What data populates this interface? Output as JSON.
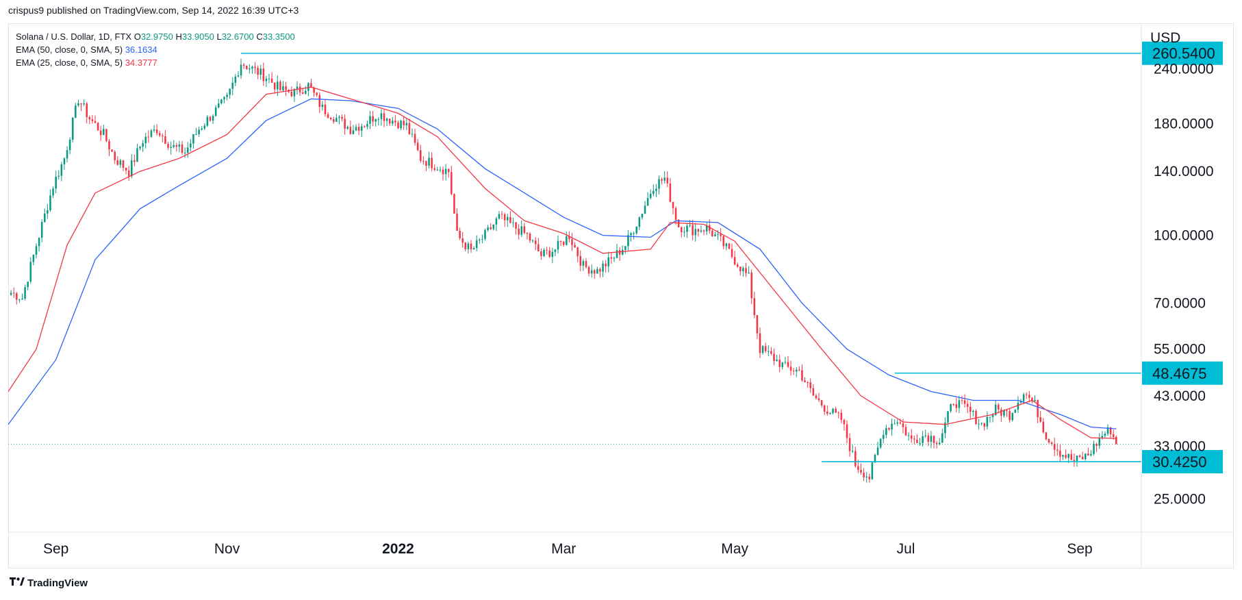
{
  "publisher_line": "crispus9 published on TradingView.com, Sep 14, 2022 16:39 UTC+3",
  "legend": {
    "symbol": "Solana / U.S. Dollar, 1D, FTX",
    "ohlc": [
      {
        "label": "O",
        "value": "32.9750"
      },
      {
        "label": "H",
        "value": "33.9050"
      },
      {
        "label": "L",
        "value": "32.6700"
      },
      {
        "label": "C",
        "value": "33.3500"
      }
    ],
    "ema50": {
      "label": "EMA (50, close, 0, SMA, 5)",
      "value": "36.1634"
    },
    "ema25": {
      "label": "EMA (25, close, 0, SMA, 5)",
      "value": "34.3777"
    }
  },
  "footer_logo": "TradingView",
  "colors": {
    "up": "#089981",
    "down": "#f23645",
    "ema50": "#2962ff",
    "ema25": "#f23645",
    "level_line": "#00bcd4",
    "level_label_bg": "#00bcd4",
    "last_price_dotted": "#26a69a"
  },
  "chart_data": {
    "type": "candlestick",
    "currency_label": "USD",
    "scale": "log",
    "y_ticks": [
      "240.0000",
      "180.0000",
      "140.0000",
      "100.0000",
      "70.0000",
      "55.0000",
      "43.0000",
      "33.0000",
      "25.0000"
    ],
    "x_ticks": [
      {
        "label": "Sep",
        "date": "2021-09-01",
        "bold": false
      },
      {
        "label": "Nov",
        "date": "2021-11-01",
        "bold": false
      },
      {
        "label": "2022",
        "date": "2022-01-01",
        "bold": true
      },
      {
        "label": "Mar",
        "date": "2022-03-01",
        "bold": false
      },
      {
        "label": "May",
        "date": "2022-05-01",
        "bold": false
      },
      {
        "label": "Jul",
        "date": "2022-07-01",
        "bold": false
      },
      {
        "label": "Sep",
        "date": "2022-09-01",
        "bold": false
      }
    ],
    "x_range": [
      "2021-08-15",
      "2022-09-21"
    ],
    "y_range": [
      21.0,
      305.0
    ],
    "horizontal_levels": [
      {
        "value": 260.54,
        "label": "260.5400",
        "from": "2021-11-06"
      },
      {
        "value": 48.4675,
        "label": "48.4675",
        "from": "2022-06-27"
      },
      {
        "value": 30.425,
        "label": "30.4250",
        "from": "2022-06-01"
      }
    ],
    "last_price": 33.35,
    "close_path": [
      [
        "2021-08-16",
        74
      ],
      [
        "2021-08-20",
        72
      ],
      [
        "2021-08-25",
        95
      ],
      [
        "2021-08-31",
        130
      ],
      [
        "2021-09-04",
        150
      ],
      [
        "2021-09-09",
        205
      ],
      [
        "2021-09-13",
        185
      ],
      [
        "2021-09-18",
        170
      ],
      [
        "2021-09-22",
        150
      ],
      [
        "2021-09-27",
        140
      ],
      [
        "2021-10-02",
        165
      ],
      [
        "2021-10-07",
        175
      ],
      [
        "2021-10-12",
        160
      ],
      [
        "2021-10-17",
        155
      ],
      [
        "2021-10-22",
        175
      ],
      [
        "2021-10-27",
        190
      ],
      [
        "2021-11-01",
        205
      ],
      [
        "2021-11-06",
        248
      ],
      [
        "2021-11-10",
        240
      ],
      [
        "2021-11-15",
        230
      ],
      [
        "2021-11-20",
        215
      ],
      [
        "2021-11-25",
        212
      ],
      [
        "2021-11-30",
        220
      ],
      [
        "2021-12-05",
        195
      ],
      [
        "2021-12-10",
        185
      ],
      [
        "2021-12-15",
        175
      ],
      [
        "2021-12-20",
        180
      ],
      [
        "2021-12-25",
        190
      ],
      [
        "2021-12-30",
        183
      ],
      [
        "2022-01-04",
        178
      ],
      [
        "2022-01-09",
        150
      ],
      [
        "2022-01-14",
        145
      ],
      [
        "2022-01-19",
        140
      ],
      [
        "2022-01-22",
        100
      ],
      [
        "2022-01-27",
        92
      ],
      [
        "2022-02-01",
        100
      ],
      [
        "2022-02-06",
        110
      ],
      [
        "2022-02-11",
        105
      ],
      [
        "2022-02-16",
        100
      ],
      [
        "2022-02-21",
        90
      ],
      [
        "2022-02-26",
        93
      ],
      [
        "2022-03-03",
        100
      ],
      [
        "2022-03-08",
        85
      ],
      [
        "2022-03-13",
        83
      ],
      [
        "2022-03-18",
        88
      ],
      [
        "2022-03-23",
        95
      ],
      [
        "2022-03-28",
        110
      ],
      [
        "2022-04-02",
        130
      ],
      [
        "2022-04-06",
        135
      ],
      [
        "2022-04-11",
        105
      ],
      [
        "2022-04-16",
        103
      ],
      [
        "2022-04-21",
        104
      ],
      [
        "2022-04-26",
        97
      ],
      [
        "2022-05-01",
        88
      ],
      [
        "2022-05-06",
        80
      ],
      [
        "2022-05-10",
        55
      ],
      [
        "2022-05-14",
        53
      ],
      [
        "2022-05-19",
        50
      ],
      [
        "2022-05-24",
        49
      ],
      [
        "2022-05-29",
        43
      ],
      [
        "2022-06-03",
        40
      ],
      [
        "2022-06-08",
        38
      ],
      [
        "2022-06-13",
        30
      ],
      [
        "2022-06-18",
        28
      ],
      [
        "2022-06-23",
        36
      ],
      [
        "2022-06-28",
        38
      ],
      [
        "2022-07-03",
        34
      ],
      [
        "2022-07-08",
        35
      ],
      [
        "2022-07-13",
        34
      ],
      [
        "2022-07-18",
        42
      ],
      [
        "2022-07-23",
        40
      ],
      [
        "2022-07-28",
        37
      ],
      [
        "2022-08-02",
        40
      ],
      [
        "2022-08-07",
        39
      ],
      [
        "2022-08-12",
        44
      ],
      [
        "2022-08-16",
        41
      ],
      [
        "2022-08-20",
        35
      ],
      [
        "2022-08-25",
        32
      ],
      [
        "2022-08-30",
        30.5
      ],
      [
        "2022-09-04",
        31.5
      ],
      [
        "2022-09-09",
        35
      ],
      [
        "2022-09-12",
        36
      ],
      [
        "2022-09-14",
        33.35
      ]
    ],
    "ema25_path": [
      [
        "2021-08-15",
        44
      ],
      [
        "2021-08-25",
        55
      ],
      [
        "2021-09-05",
        95
      ],
      [
        "2021-09-15",
        125
      ],
      [
        "2021-10-01",
        140
      ],
      [
        "2021-10-15",
        150
      ],
      [
        "2021-11-01",
        170
      ],
      [
        "2021-11-15",
        210
      ],
      [
        "2021-12-01",
        218
      ],
      [
        "2021-12-15",
        205
      ],
      [
        "2022-01-01",
        190
      ],
      [
        "2022-01-15",
        168
      ],
      [
        "2022-02-01",
        128
      ],
      [
        "2022-02-15",
        108
      ],
      [
        "2022-03-01",
        101
      ],
      [
        "2022-03-15",
        91
      ],
      [
        "2022-04-01",
        93
      ],
      [
        "2022-04-08",
        107
      ],
      [
        "2022-04-20",
        106
      ],
      [
        "2022-05-01",
        97
      ],
      [
        "2022-05-15",
        75
      ],
      [
        "2022-06-01",
        55
      ],
      [
        "2022-06-15",
        43
      ],
      [
        "2022-06-30",
        37.5
      ],
      [
        "2022-07-15",
        37
      ],
      [
        "2022-08-01",
        39
      ],
      [
        "2022-08-15",
        42
      ],
      [
        "2022-08-25",
        38
      ],
      [
        "2022-09-05",
        34.5
      ],
      [
        "2022-09-14",
        34.38
      ]
    ],
    "ema50_path": [
      [
        "2021-08-15",
        37
      ],
      [
        "2021-09-01",
        52
      ],
      [
        "2021-09-15",
        88
      ],
      [
        "2021-10-01",
        115
      ],
      [
        "2021-10-15",
        130
      ],
      [
        "2021-11-01",
        150
      ],
      [
        "2021-11-15",
        183
      ],
      [
        "2021-12-01",
        205
      ],
      [
        "2021-12-15",
        203
      ],
      [
        "2022-01-01",
        195
      ],
      [
        "2022-01-15",
        175
      ],
      [
        "2022-02-01",
        142
      ],
      [
        "2022-02-15",
        125
      ],
      [
        "2022-03-01",
        110
      ],
      [
        "2022-03-15",
        100
      ],
      [
        "2022-04-01",
        99
      ],
      [
        "2022-04-10",
        108
      ],
      [
        "2022-04-25",
        107
      ],
      [
        "2022-05-10",
        93
      ],
      [
        "2022-05-25",
        70
      ],
      [
        "2022-06-10",
        55
      ],
      [
        "2022-06-25",
        48
      ],
      [
        "2022-07-10",
        44
      ],
      [
        "2022-07-25",
        42
      ],
      [
        "2022-08-10",
        42
      ],
      [
        "2022-08-25",
        39
      ],
      [
        "2022-09-05",
        36.5
      ],
      [
        "2022-09-14",
        36.16
      ]
    ]
  }
}
